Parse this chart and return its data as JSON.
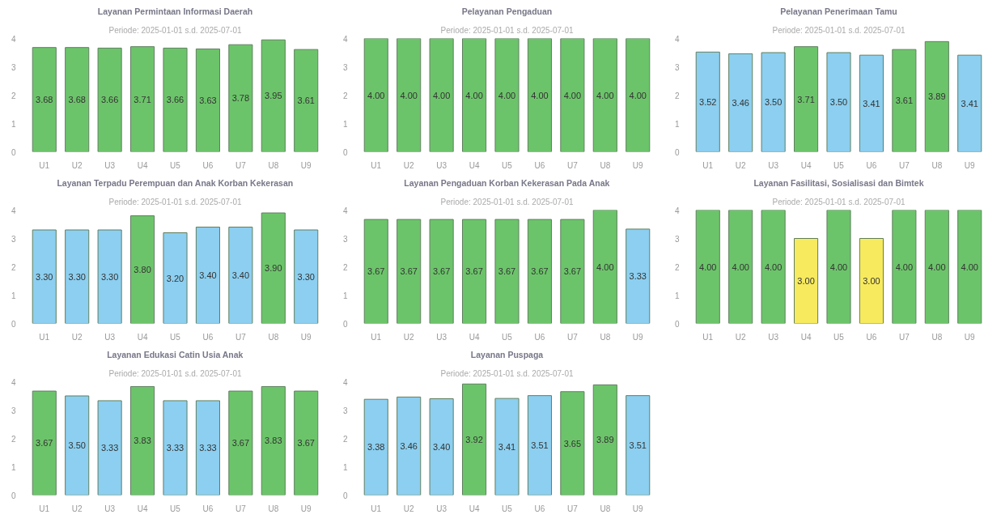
{
  "chart_data": [
    {
      "type": "bar",
      "title": "Layanan Permintaan Informasi Daerah",
      "subtitle": "Periode: 2025-01-01 s.d. 2025-07-01",
      "categories": [
        "U1",
        "U2",
        "U3",
        "U4",
        "U5",
        "U6",
        "U7",
        "U8",
        "U9"
      ],
      "values": [
        3.68,
        3.68,
        3.66,
        3.71,
        3.66,
        3.63,
        3.78,
        3.95,
        3.61
      ],
      "value_labels": [
        "3.68",
        "3.68",
        "3.66",
        "3.71",
        "3.66",
        "3.63",
        "3.78",
        "3.95",
        "3.61"
      ],
      "colors": [
        "#6cc46a",
        "#6cc46a",
        "#6cc46a",
        "#6cc46a",
        "#6cc46a",
        "#6cc46a",
        "#6cc46a",
        "#6cc46a",
        "#6cc46a"
      ],
      "ylim": [
        0,
        4
      ],
      "yticks": [
        0,
        1,
        2,
        3,
        4
      ]
    },
    {
      "type": "bar",
      "title": "Pelayanan Pengaduan",
      "subtitle": "Periode: 2025-01-01 s.d. 2025-07-01",
      "categories": [
        "U1",
        "U2",
        "U3",
        "U4",
        "U5",
        "U6",
        "U7",
        "U8",
        "U9"
      ],
      "values": [
        4,
        4,
        4,
        4,
        4,
        4,
        4,
        4,
        4
      ],
      "value_labels": [
        "4.00",
        "4.00",
        "4.00",
        "4.00",
        "4.00",
        "4.00",
        "4.00",
        "4.00",
        "4.00"
      ],
      "colors": [
        "#6cc46a",
        "#6cc46a",
        "#6cc46a",
        "#6cc46a",
        "#6cc46a",
        "#6cc46a",
        "#6cc46a",
        "#6cc46a",
        "#6cc46a"
      ],
      "ylim": [
        0,
        4
      ],
      "yticks": [
        0,
        1,
        2,
        3,
        4
      ]
    },
    {
      "type": "bar",
      "title": "Pelayanan Penerimaan Tamu",
      "subtitle": "Periode: 2025-01-01 s.d. 2025-07-01",
      "categories": [
        "U1",
        "U2",
        "U3",
        "U4",
        "U5",
        "U6",
        "U7",
        "U8",
        "U9"
      ],
      "values": [
        3.52,
        3.46,
        3.5,
        3.71,
        3.5,
        3.41,
        3.61,
        3.89,
        3.41
      ],
      "value_labels": [
        "3.52",
        "3.46",
        "3.50",
        "3.71",
        "3.50",
        "3.41",
        "3.61",
        "3.89",
        "3.41"
      ],
      "colors": [
        "#8ccff0",
        "#8ccff0",
        "#8ccff0",
        "#6cc46a",
        "#8ccff0",
        "#8ccff0",
        "#6cc46a",
        "#6cc46a",
        "#8ccff0"
      ],
      "ylim": [
        0,
        4
      ],
      "yticks": [
        0,
        1,
        2,
        3,
        4
      ]
    },
    {
      "type": "bar",
      "title": "Layanan Terpadu Perempuan dan Anak Korban Kekerasan",
      "subtitle": "Periode: 2025-01-01 s.d. 2025-07-01",
      "categories": [
        "U1",
        "U2",
        "U3",
        "U4",
        "U5",
        "U6",
        "U7",
        "U8",
        "U9"
      ],
      "values": [
        3.3,
        3.3,
        3.3,
        3.8,
        3.2,
        3.4,
        3.4,
        3.9,
        3.3
      ],
      "value_labels": [
        "3.30",
        "3.30",
        "3.30",
        "3.80",
        "3.20",
        "3.40",
        "3.40",
        "3.90",
        "3.30"
      ],
      "colors": [
        "#8ccff0",
        "#8ccff0",
        "#8ccff0",
        "#6cc46a",
        "#8ccff0",
        "#8ccff0",
        "#8ccff0",
        "#6cc46a",
        "#8ccff0"
      ],
      "ylim": [
        0,
        4
      ],
      "yticks": [
        0,
        1,
        2,
        3,
        4
      ]
    },
    {
      "type": "bar",
      "title": "Layanan Pengaduan Korban Kekerasan Pada Anak",
      "subtitle": "Periode: 2025-01-01 s.d. 2025-07-01",
      "categories": [
        "U1",
        "U2",
        "U3",
        "U4",
        "U5",
        "U6",
        "U7",
        "U8",
        "U9"
      ],
      "values": [
        3.67,
        3.67,
        3.67,
        3.67,
        3.67,
        3.67,
        3.67,
        4,
        3.33
      ],
      "value_labels": [
        "3.67",
        "3.67",
        "3.67",
        "3.67",
        "3.67",
        "3.67",
        "3.67",
        "4.00",
        "3.33"
      ],
      "colors": [
        "#6cc46a",
        "#6cc46a",
        "#6cc46a",
        "#6cc46a",
        "#6cc46a",
        "#6cc46a",
        "#6cc46a",
        "#6cc46a",
        "#8ccff0"
      ],
      "ylim": [
        0,
        4
      ],
      "yticks": [
        0,
        1,
        2,
        3,
        4
      ]
    },
    {
      "type": "bar",
      "title": "Layanan Fasilitasi, Sosialisasi dan Bimtek",
      "subtitle": "Periode: 2025-01-01 s.d. 2025-07-01",
      "categories": [
        "U1",
        "U2",
        "U3",
        "U4",
        "U5",
        "U6",
        "U7",
        "U8",
        "U9"
      ],
      "values": [
        4,
        4,
        4,
        3,
        4,
        3,
        4,
        4,
        4
      ],
      "value_labels": [
        "4.00",
        "4.00",
        "4.00",
        "3.00",
        "4.00",
        "3.00",
        "4.00",
        "4.00",
        "4.00"
      ],
      "colors": [
        "#6cc46a",
        "#6cc46a",
        "#6cc46a",
        "#f7ea5e",
        "#6cc46a",
        "#f7ea5e",
        "#6cc46a",
        "#6cc46a",
        "#6cc46a"
      ],
      "ylim": [
        0,
        4
      ],
      "yticks": [
        0,
        1,
        2,
        3,
        4
      ]
    },
    {
      "type": "bar",
      "title": "Layanan Edukasi Catin Usia Anak",
      "subtitle": "Periode: 2025-01-01 s.d. 2025-07-01",
      "categories": [
        "U1",
        "U2",
        "U3",
        "U4",
        "U5",
        "U6",
        "U7",
        "U8",
        "U9"
      ],
      "values": [
        3.67,
        3.5,
        3.33,
        3.83,
        3.33,
        3.33,
        3.67,
        3.83,
        3.67
      ],
      "value_labels": [
        "3.67",
        "3.50",
        "3.33",
        "3.83",
        "3.33",
        "3.33",
        "3.67",
        "3.83",
        "3.67"
      ],
      "colors": [
        "#6cc46a",
        "#8ccff0",
        "#8ccff0",
        "#6cc46a",
        "#8ccff0",
        "#8ccff0",
        "#6cc46a",
        "#6cc46a",
        "#6cc46a"
      ],
      "ylim": [
        0,
        4
      ],
      "yticks": [
        0,
        1,
        2,
        3,
        4
      ]
    },
    {
      "type": "bar",
      "title": "Layanan Puspaga",
      "subtitle": "Periode: 2025-01-01 s.d. 2025-07-01",
      "categories": [
        "U1",
        "U2",
        "U3",
        "U4",
        "U5",
        "U6",
        "U7",
        "U8",
        "U9"
      ],
      "values": [
        3.38,
        3.46,
        3.4,
        3.92,
        3.41,
        3.51,
        3.65,
        3.89,
        3.51
      ],
      "value_labels": [
        "3.38",
        "3.46",
        "3.40",
        "3.92",
        "3.41",
        "3.51",
        "3.65",
        "3.89",
        "3.51"
      ],
      "colors": [
        "#8ccff0",
        "#8ccff0",
        "#8ccff0",
        "#6cc46a",
        "#8ccff0",
        "#8ccff0",
        "#6cc46a",
        "#6cc46a",
        "#8ccff0"
      ],
      "ylim": [
        0,
        4
      ],
      "yticks": [
        0,
        1,
        2,
        3,
        4
      ]
    }
  ]
}
